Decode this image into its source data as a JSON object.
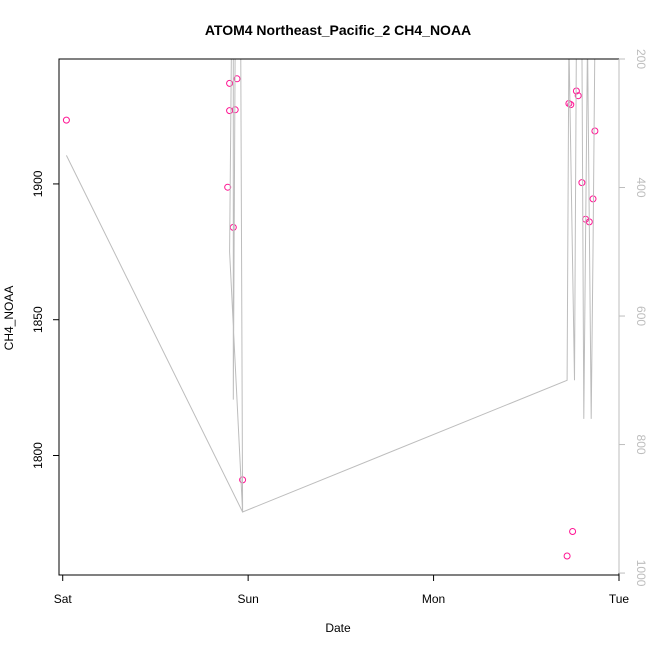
{
  "chart_data": {
    "type": "scatter",
    "title": "ATOM4 Northeast_Pacific_2 CH4_NOAA",
    "xlabel": "Date",
    "ylabel": "CH4_NOAA",
    "x_ticks": [
      "Sat",
      "Sun",
      "Mon",
      "Tue"
    ],
    "y_ticks": [
      "1800",
      "1850",
      "1900"
    ],
    "y2_ticks": [
      "200",
      "400",
      "600",
      "800",
      "1000"
    ],
    "xlim_days": [
      -0.02,
      3.0
    ],
    "ylim": [
      1756,
      1946
    ],
    "y2lim_reversed": [
      200,
      1003
    ],
    "points_color": "#ff1493",
    "line_color": "#bdbdbd",
    "series": [
      {
        "kind": "points",
        "axis": "left",
        "x_days": [
          0.02,
          0.89,
          0.9,
          0.9,
          0.92,
          0.93,
          0.94,
          0.97,
          2.72,
          2.73,
          2.74,
          2.75,
          2.77,
          2.78,
          2.8,
          2.82,
          2.84,
          2.86,
          2.87
        ],
        "y": [
          1923.5,
          1898.8,
          1927,
          1937,
          1884,
          1927.3,
          1938.7,
          1791,
          1763,
          1929.6,
          1929.2,
          1772,
          1934.2,
          1932.5,
          1900.5,
          1887,
          1886,
          1894.5,
          1919.5
        ]
      },
      {
        "kind": "line",
        "axis": "right",
        "x_days": [
          0.02,
          0.97,
          0.9,
          0.91,
          0.92,
          0.92,
          0.93,
          0.95,
          0.96,
          0.97,
          2.72,
          2.73,
          2.76,
          2.77,
          2.79,
          2.8,
          2.81,
          2.83,
          2.85,
          2.86,
          2.87
        ],
        "y": [
          350,
          905,
          500,
          170,
          170,
          730,
          170,
          170,
          170,
          905,
          700,
          170,
          700,
          170,
          170,
          170,
          760,
          170,
          760,
          500,
          170
        ]
      }
    ]
  }
}
